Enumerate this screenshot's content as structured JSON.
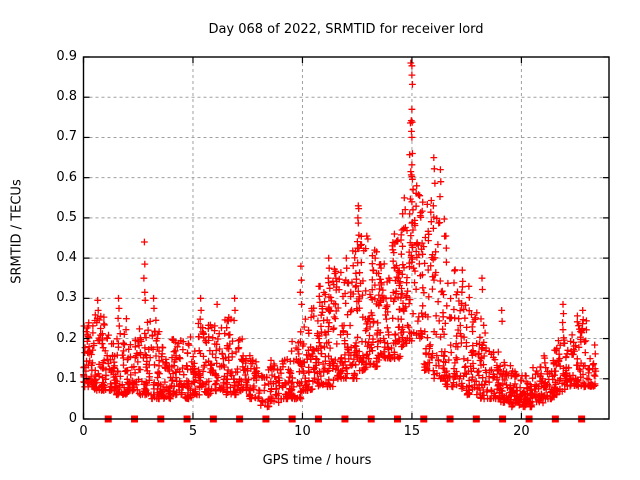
{
  "chart_data": {
    "type": "scatter",
    "title": "Day 068 of 2022, SRMTID for receiver lord",
    "xlabel": "GPS time / hours",
    "ylabel": "SRMTID / TECUs",
    "xlim": [
      0,
      24
    ],
    "ylim": [
      0,
      0.9
    ],
    "xticks": [
      {
        "v": 0,
        "label": "0"
      },
      {
        "v": 5,
        "label": "5"
      },
      {
        "v": 10,
        "label": "10"
      },
      {
        "v": 15,
        "label": "15"
      },
      {
        "v": 20,
        "label": "20"
      }
    ],
    "yticks": [
      {
        "v": 0,
        "label": "0"
      },
      {
        "v": 0.1,
        "label": "0.1"
      },
      {
        "v": 0.2,
        "label": "0.2"
      },
      {
        "v": 0.3,
        "label": "0.3"
      },
      {
        "v": 0.4,
        "label": "0.4"
      },
      {
        "v": 0.5,
        "label": "0.5"
      },
      {
        "v": 0.6,
        "label": "0.6"
      },
      {
        "v": 0.7,
        "label": "0.7"
      },
      {
        "v": 0.8,
        "label": "0.8"
      },
      {
        "v": 0.9,
        "label": "0.9"
      }
    ],
    "grid": {
      "show": true,
      "style": "dashed",
      "color": "#a0a0a0"
    },
    "legend": "none",
    "series": [
      {
        "name": "SRMTID",
        "marker": "plus",
        "color": "#ff0000",
        "clusters": [
          [
            0.0,
            0.5,
            55,
            0.08,
            0.24,
            2.0
          ],
          [
            0.5,
            1.0,
            55,
            0.07,
            0.26,
            2.0
          ],
          [
            1.0,
            1.5,
            45,
            0.07,
            0.22,
            2.0
          ],
          [
            1.5,
            2.0,
            45,
            0.06,
            0.25,
            2.0
          ],
          [
            2.0,
            2.5,
            40,
            0.07,
            0.2,
            2.0
          ],
          [
            2.5,
            3.0,
            45,
            0.06,
            0.26,
            2.0
          ],
          [
            3.0,
            3.5,
            45,
            0.05,
            0.25,
            2.0
          ],
          [
            3.5,
            4.0,
            40,
            0.05,
            0.18,
            1.8
          ],
          [
            4.0,
            4.5,
            42,
            0.06,
            0.2,
            1.8
          ],
          [
            4.5,
            5.0,
            40,
            0.05,
            0.22,
            1.8
          ],
          [
            5.0,
            5.5,
            45,
            0.06,
            0.24,
            1.8
          ],
          [
            5.5,
            6.0,
            40,
            0.06,
            0.25,
            1.8
          ],
          [
            6.0,
            6.5,
            42,
            0.07,
            0.28,
            2.0
          ],
          [
            6.5,
            7.0,
            45,
            0.06,
            0.26,
            2.0
          ],
          [
            7.0,
            7.5,
            40,
            0.07,
            0.2,
            1.8
          ],
          [
            7.5,
            8.0,
            32,
            0.05,
            0.16,
            1.6
          ],
          [
            8.0,
            8.5,
            25,
            0.03,
            0.13,
            1.5
          ],
          [
            8.5,
            9.0,
            35,
            0.04,
            0.15,
            1.5
          ],
          [
            9.0,
            9.5,
            35,
            0.05,
            0.15,
            1.5
          ],
          [
            9.5,
            10.0,
            38,
            0.05,
            0.22,
            1.8
          ],
          [
            10.0,
            10.5,
            45,
            0.07,
            0.28,
            1.8
          ],
          [
            10.5,
            11.0,
            50,
            0.08,
            0.33,
            1.8
          ],
          [
            11.0,
            11.5,
            52,
            0.08,
            0.38,
            1.8
          ],
          [
            11.5,
            12.0,
            50,
            0.1,
            0.38,
            1.7
          ],
          [
            12.0,
            12.5,
            52,
            0.1,
            0.42,
            1.7
          ],
          [
            12.5,
            13.0,
            52,
            0.12,
            0.46,
            1.7
          ],
          [
            13.0,
            13.5,
            52,
            0.13,
            0.42,
            1.6
          ],
          [
            13.5,
            14.0,
            52,
            0.15,
            0.4,
            1.6
          ],
          [
            14.0,
            14.5,
            52,
            0.15,
            0.45,
            1.6
          ],
          [
            14.5,
            15.0,
            55,
            0.18,
            0.55,
            1.6
          ],
          [
            15.0,
            15.5,
            50,
            0.2,
            0.6,
            1.6
          ],
          [
            15.5,
            16.0,
            46,
            0.12,
            0.55,
            1.7
          ],
          [
            16.0,
            16.5,
            46,
            0.1,
            0.5,
            1.8
          ],
          [
            16.5,
            17.0,
            42,
            0.08,
            0.4,
            1.8
          ],
          [
            17.0,
            17.5,
            42,
            0.07,
            0.33,
            1.8
          ],
          [
            17.5,
            18.0,
            42,
            0.06,
            0.28,
            1.8
          ],
          [
            18.0,
            18.5,
            42,
            0.05,
            0.25,
            1.8
          ],
          [
            18.5,
            19.0,
            40,
            0.05,
            0.17,
            1.7
          ],
          [
            19.0,
            19.5,
            42,
            0.04,
            0.15,
            1.7
          ],
          [
            19.5,
            20.0,
            44,
            0.03,
            0.12,
            1.6
          ],
          [
            20.0,
            20.5,
            44,
            0.03,
            0.11,
            1.6
          ],
          [
            20.5,
            21.0,
            40,
            0.04,
            0.13,
            1.6
          ],
          [
            21.0,
            21.5,
            40,
            0.05,
            0.17,
            1.7
          ],
          [
            21.5,
            22.0,
            40,
            0.06,
            0.2,
            1.7
          ],
          [
            22.0,
            22.5,
            38,
            0.08,
            0.22,
            1.7
          ],
          [
            22.5,
            23.0,
            38,
            0.08,
            0.26,
            1.8
          ],
          [
            23.0,
            23.4,
            28,
            0.08,
            0.2,
            1.7
          ]
        ],
        "peaks": [
          [
            0.65,
            0.295
          ],
          [
            0.67,
            0.27
          ],
          [
            0.63,
            0.25
          ],
          [
            1.6,
            0.3
          ],
          [
            1.62,
            0.275
          ],
          [
            1.58,
            0.25
          ],
          [
            2.78,
            0.44
          ],
          [
            2.8,
            0.385
          ],
          [
            2.76,
            0.35
          ],
          [
            2.8,
            0.315
          ],
          [
            2.82,
            0.295
          ],
          [
            3.2,
            0.3
          ],
          [
            3.22,
            0.275
          ],
          [
            5.35,
            0.3
          ],
          [
            5.37,
            0.27
          ],
          [
            5.33,
            0.248
          ],
          [
            6.1,
            0.285
          ],
          [
            6.9,
            0.3
          ],
          [
            6.92,
            0.27
          ],
          [
            6.88,
            0.245
          ],
          [
            9.93,
            0.38
          ],
          [
            9.95,
            0.345
          ],
          [
            9.9,
            0.315
          ],
          [
            9.96,
            0.285
          ],
          [
            10.75,
            0.33
          ],
          [
            10.77,
            0.305
          ],
          [
            11.2,
            0.4
          ],
          [
            11.22,
            0.375
          ],
          [
            11.18,
            0.35
          ],
          [
            11.25,
            0.325
          ],
          [
            12.0,
            0.4
          ],
          [
            12.02,
            0.375
          ],
          [
            11.98,
            0.345
          ],
          [
            12.55,
            0.53
          ],
          [
            12.57,
            0.523
          ],
          [
            12.53,
            0.5
          ],
          [
            12.55,
            0.487
          ],
          [
            12.58,
            0.457
          ],
          [
            12.52,
            0.425
          ],
          [
            13.3,
            0.42
          ],
          [
            13.32,
            0.4
          ],
          [
            14.2,
            0.46
          ],
          [
            14.22,
            0.435
          ],
          [
            14.55,
            0.47
          ],
          [
            14.5,
            0.445
          ],
          [
            14.95,
            0.885
          ],
          [
            15.0,
            0.878
          ],
          [
            15.0,
            0.855
          ],
          [
            15.02,
            0.832
          ],
          [
            15.0,
            0.77
          ],
          [
            14.97,
            0.742
          ],
          [
            14.93,
            0.736
          ],
          [
            15.01,
            0.738
          ],
          [
            14.98,
            0.715
          ],
          [
            15.0,
            0.7
          ],
          [
            14.9,
            0.657
          ],
          [
            15.02,
            0.66
          ],
          [
            15.0,
            0.632
          ],
          [
            14.95,
            0.615
          ],
          [
            15.0,
            0.603
          ],
          [
            15.02,
            0.596
          ],
          [
            14.97,
            0.607
          ],
          [
            15.05,
            0.57
          ],
          [
            14.93,
            0.547
          ],
          [
            15.0,
            0.54
          ],
          [
            15.05,
            0.52
          ],
          [
            14.9,
            0.51
          ],
          [
            15.0,
            0.487
          ],
          [
            15.05,
            0.47
          ],
          [
            14.95,
            0.456
          ],
          [
            15.0,
            0.432
          ],
          [
            16.0,
            0.65
          ],
          [
            16.02,
            0.622
          ],
          [
            16.05,
            0.586
          ],
          [
            15.98,
            0.53
          ],
          [
            16.0,
            0.502
          ],
          [
            16.3,
            0.62
          ],
          [
            16.32,
            0.59
          ],
          [
            16.28,
            0.553
          ],
          [
            16.55,
            0.455
          ],
          [
            16.57,
            0.425
          ],
          [
            17.3,
            0.37
          ],
          [
            17.32,
            0.342
          ],
          [
            17.28,
            0.315
          ],
          [
            17.6,
            0.33
          ],
          [
            17.62,
            0.302
          ],
          [
            18.2,
            0.35
          ],
          [
            18.22,
            0.322
          ],
          [
            19.1,
            0.27
          ],
          [
            19.12,
            0.243
          ],
          [
            21.9,
            0.285
          ],
          [
            21.92,
            0.262
          ],
          [
            21.88,
            0.24
          ],
          [
            21.9,
            0.222
          ],
          [
            21.93,
            0.202
          ],
          [
            22.8,
            0.27
          ],
          [
            22.82,
            0.247
          ],
          [
            22.78,
            0.225
          ]
        ]
      },
      {
        "name": "hour-markers",
        "marker": "filled-square",
        "color": "#ff0000",
        "y": 0,
        "x": [
          1.13,
          2.33,
          3.53,
          4.73,
          5.93,
          7.13,
          8.33,
          9.53,
          10.73,
          11.94,
          13.14,
          14.34,
          15.54,
          16.74,
          17.94,
          19.14,
          20.35,
          21.55,
          22.75
        ]
      }
    ]
  },
  "colors": {
    "background": "#ffffff",
    "axis": "#000000",
    "grid": "#a0a0a0",
    "data": "#ff0000",
    "text": "#000000"
  }
}
